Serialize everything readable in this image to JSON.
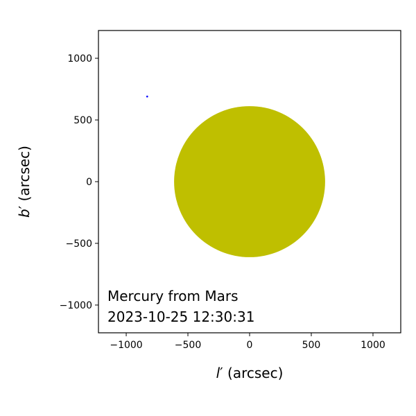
{
  "chart_data": {
    "type": "scatter",
    "xlabel_base": "l",
    "xlabel_prime": "′",
    "xlabel_unit": " (arcsec)",
    "ylabel_base": "b",
    "ylabel_prime": "′",
    "ylabel_unit": " (arcsec)",
    "xlim": [
      -1225,
      1225
    ],
    "ylim": [
      -1225,
      1225
    ],
    "xticks": [
      -1000,
      -500,
      0,
      500,
      1000
    ],
    "yticks": [
      -1000,
      -500,
      0,
      500,
      1000
    ],
    "xtick_labels": [
      "−1000",
      "−500",
      "0",
      "500",
      "1000"
    ],
    "ytick_labels": [
      "−1000",
      "−500",
      "0",
      "500",
      "1000"
    ],
    "disk": {
      "center": [
        0,
        0
      ],
      "radius": 612,
      "color": "#bfbf00"
    },
    "points": [
      {
        "x": -830,
        "y": 690,
        "color": "#0000ff"
      }
    ],
    "annotation_line1": "Mercury from Mars",
    "annotation_line2": "2023-10-25 12:30:31",
    "grid": false,
    "legend": "none"
  }
}
